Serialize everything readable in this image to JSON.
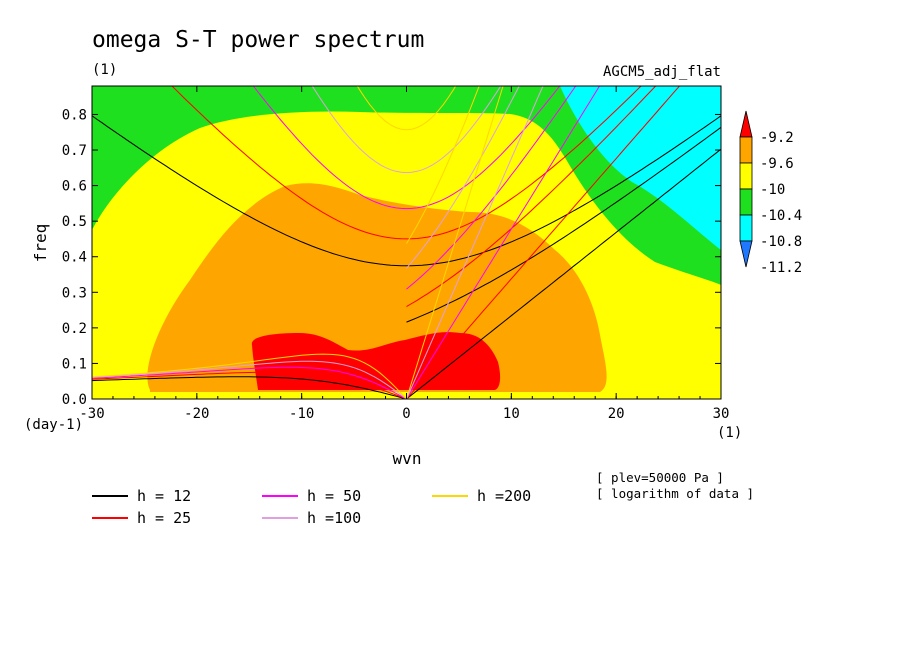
{
  "chart_data": {
    "type": "heatmap",
    "title": "omega S-T power spectrum",
    "subtitle_left": "(1)",
    "subtitle_right": "AGCM5_adj_flat",
    "xlabel": "wvn",
    "ylabel": "freq",
    "x_unit": "(1)",
    "y_unit": "(day-1)",
    "xlim": [
      -30,
      30
    ],
    "ylim": [
      0,
      0.88
    ],
    "x_ticks": [
      -30,
      -20,
      -10,
      0,
      10,
      20,
      30
    ],
    "x_tick_labels": [
      "-30",
      "-20",
      "-10",
      "0",
      "10",
      "20",
      "30"
    ],
    "y_ticks": [
      0,
      0.1,
      0.2,
      0.3,
      0.4,
      0.5,
      0.6,
      0.7,
      0.8
    ],
    "y_tick_labels": [
      "0.0",
      "0.1",
      "0.2",
      "0.3",
      "0.4",
      "0.5",
      "0.6",
      "0.7",
      "0.8"
    ],
    "colorbar": {
      "levels": [
        -11.2,
        -10.8,
        -10.4,
        -10,
        -9.6,
        -9.2
      ],
      "labels": [
        "-11.2",
        "-10.8",
        "-10.4",
        "-10",
        "-9.6",
        "-9.2"
      ],
      "colors": [
        "#1f78ff",
        "#00ffff",
        "#1fe01f",
        "#ffff00",
        "#ffa500",
        "#ff0000"
      ]
    },
    "notes": [
      "[ plev=50000 Pa ]",
      "[ logarithm of data ]"
    ],
    "dispersion_curves": [
      {
        "label": "h = 12",
        "h": 12,
        "color": "#000000"
      },
      {
        "label": "h = 25",
        "h": 25,
        "color": "#ff0000"
      },
      {
        "label": "h = 50",
        "h": 50,
        "color": "#ff00ff"
      },
      {
        "label": "h =100",
        "h": 100,
        "color": "#e0a0e0"
      },
      {
        "label": "h =200",
        "h": 200,
        "color": "#ffd700"
      }
    ]
  }
}
